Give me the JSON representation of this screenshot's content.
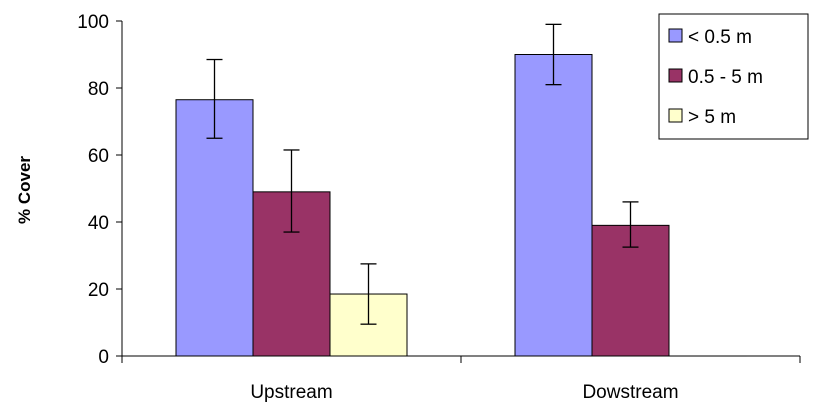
{
  "chart_data": {
    "type": "bar",
    "categories": [
      "Upstream",
      "Dowstream"
    ],
    "series": [
      {
        "name": "< 0.5 m",
        "values": [
          76.5,
          90
        ],
        "error_low": [
          65,
          81
        ],
        "error_high": [
          88.5,
          99
        ],
        "color": "#9999ff"
      },
      {
        "name": "0.5 - 5 m",
        "values": [
          49,
          39
        ],
        "error_low": [
          37,
          32.5
        ],
        "error_high": [
          61.5,
          46
        ],
        "color": "#993366"
      },
      {
        "name": "> 5 m",
        "values": [
          18.5,
          0
        ],
        "error_low": [
          9.5,
          null
        ],
        "error_high": [
          27.5,
          null
        ],
        "color": "#ffffcc"
      }
    ],
    "title": "",
    "xlabel": "",
    "ylabel": "% Cover",
    "ylim": [
      0,
      100
    ],
    "yticks": [
      "0",
      "20",
      "40",
      "60",
      "80",
      "100"
    ],
    "grid": false,
    "legend_position": "top-right"
  }
}
